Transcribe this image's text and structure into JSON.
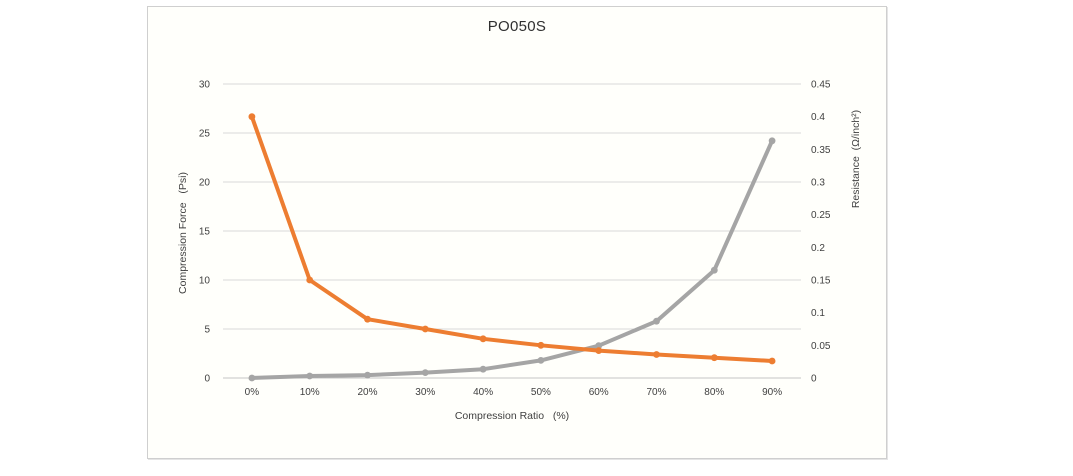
{
  "chart_data": {
    "type": "line",
    "title": "PO050S",
    "categories": [
      "0%",
      "10%",
      "20%",
      "30%",
      "40%",
      "50%",
      "60%",
      "70%",
      "80%",
      "90%"
    ],
    "series": [
      {
        "name": "Compression Force",
        "axis": "left",
        "color": "#A5A5A5",
        "marker": "circle",
        "values": [
          0,
          0.2,
          0.3,
          0.55,
          0.9,
          1.8,
          3.3,
          5.8,
          11,
          24.2
        ]
      },
      {
        "name": "Resistance",
        "axis": "right",
        "color": "#ED7D31",
        "marker": "circle",
        "values": [
          0.4,
          0.15,
          0.09,
          0.075,
          0.06,
          0.05,
          0.042,
          0.036,
          0.031,
          0.026
        ]
      }
    ],
    "xlabel": "Compression Ratio   (%)",
    "ylabel_left": "Compression Force   (Psi)",
    "ylabel_right": "Resistance  (Ω/inch²)",
    "y_left": {
      "min": 0,
      "max": 30,
      "step": 5,
      "ticks": [
        "0",
        "5",
        "10",
        "15",
        "20",
        "25",
        "30"
      ]
    },
    "y_right": {
      "min": 0,
      "max": 0.45,
      "step": 0.05,
      "ticks": [
        "0",
        "0.05",
        "0.1",
        "0.15",
        "0.2",
        "0.25",
        "0.3",
        "0.35",
        "0.4",
        "0.45"
      ]
    },
    "grid": true,
    "legend": false,
    "colors": {
      "grid": "#D9D9D9",
      "axis_line": "#C6C6C6",
      "tick_text": "#404040",
      "title_text": "#303030",
      "plot_bg": "#FFFFFB",
      "border": "#CFCFCF"
    }
  }
}
